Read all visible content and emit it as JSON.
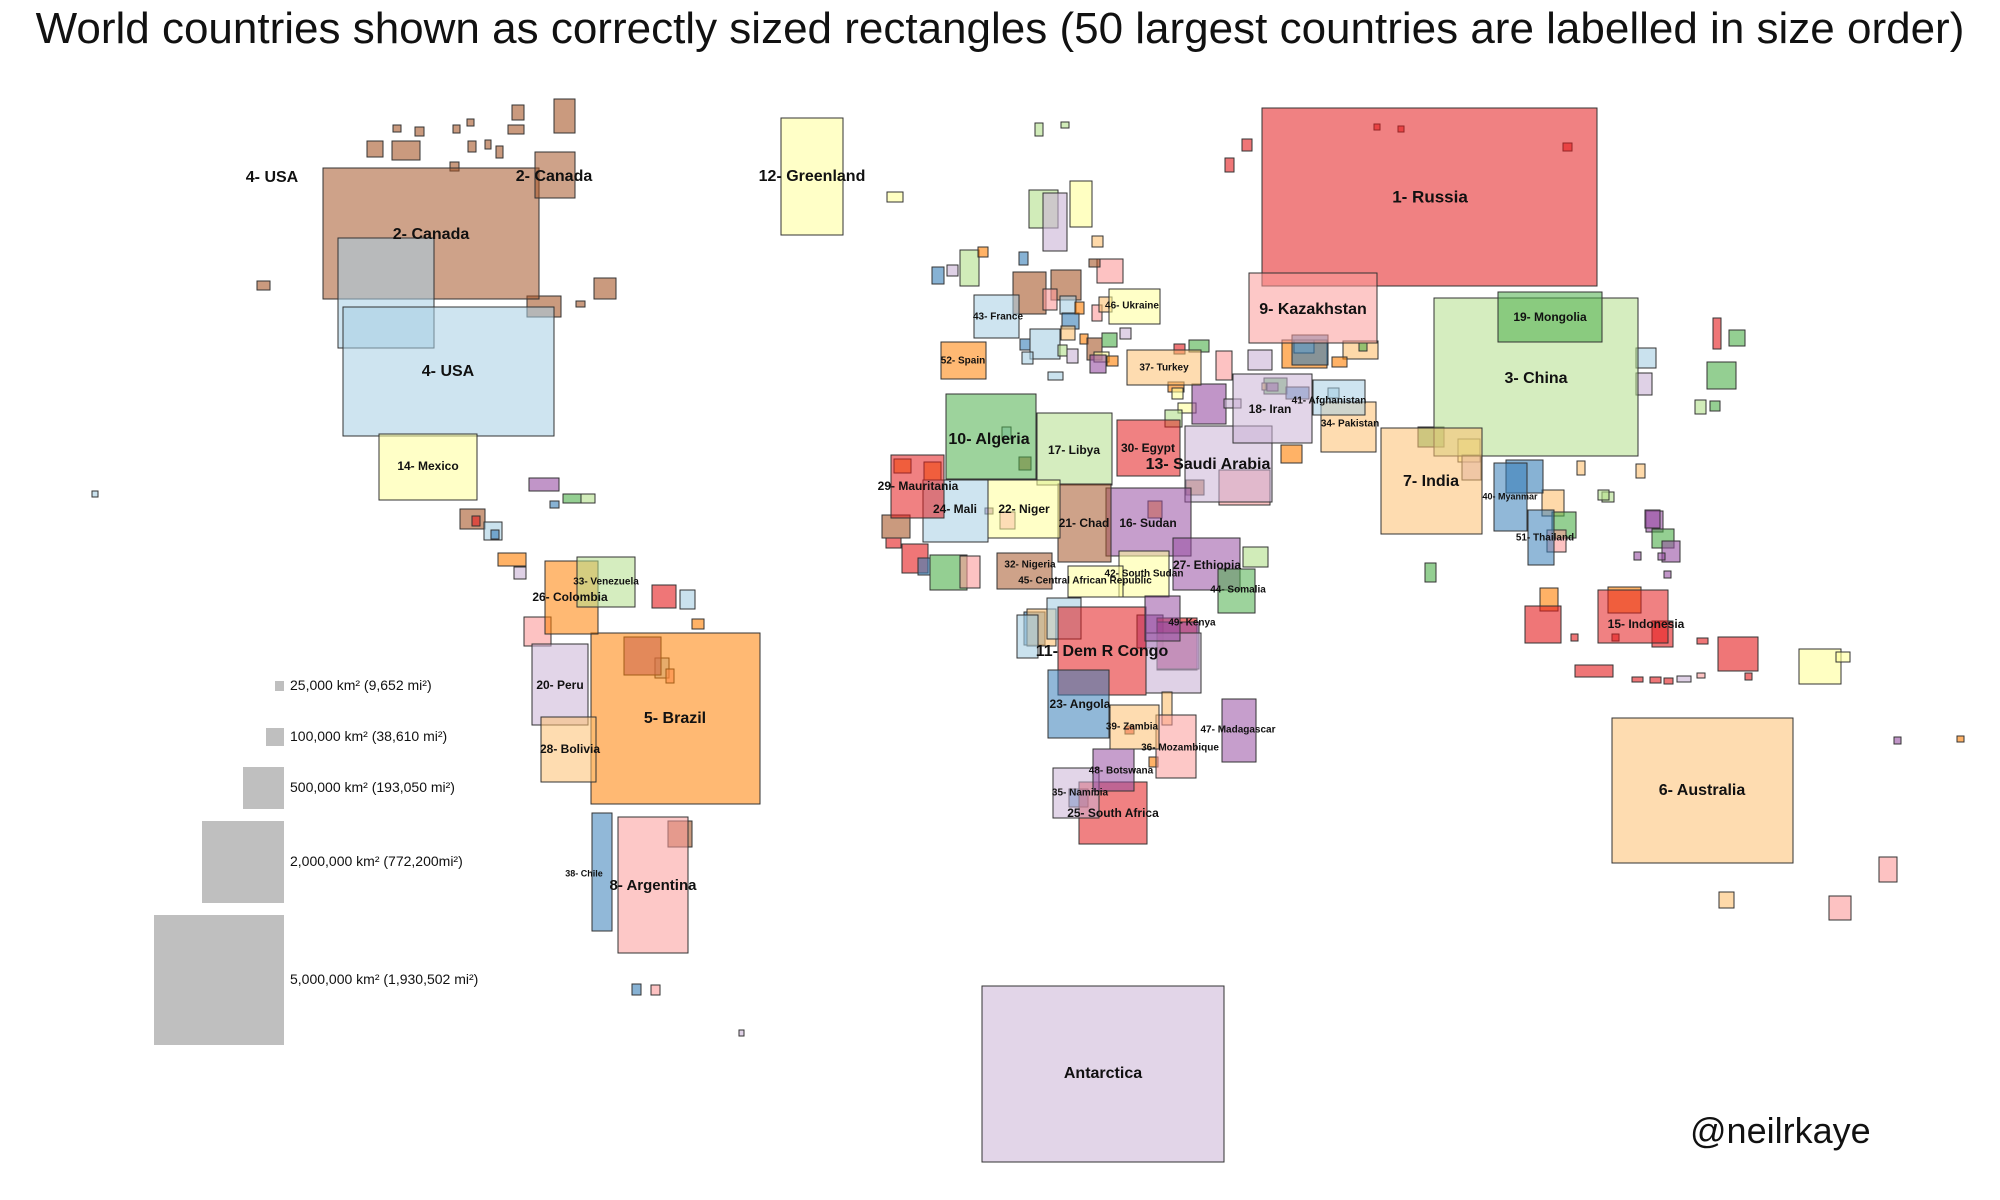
{
  "title": "World countries shown as correctly sized rectangles (50 largest countries are labelled in size order)",
  "credit": "@neilrkaye",
  "legend": [
    {
      "label": "25,000 km² (9,652 mi²)",
      "area_km2": 25000
    },
    {
      "label": "100,000 km² (38,610 mi²)",
      "area_km2": 100000
    },
    {
      "label": "500,000 km² (193,050 mi²)",
      "area_km2": 500000
    },
    {
      "label": "2,000,000 km² (772,200mi²)",
      "area_km2": 2000000
    },
    {
      "label": "5,000,000 km² (1,930,502 mi²)",
      "area_km2": 5000000
    }
  ],
  "palette": [
    "#e41a1c",
    "#377eb8",
    "#4daf4a",
    "#984ea3",
    "#ff7f00",
    "#ffff99",
    "#a65628",
    "#f781bf",
    "#b2df8a",
    "#a6cee3",
    "#fdbf6f",
    "#cab2d6",
    "#fb9a99"
  ],
  "countries": [
    {
      "label": "1- Russia",
      "color": "#e41a1c"
    },
    {
      "label": "2- Canada",
      "color": "#a65628"
    },
    {
      "label": "2- Canada",
      "color": "#a65628"
    },
    {
      "label": "3- China",
      "color": "#b2df8a"
    },
    {
      "label": "4- USA",
      "color": "#a6cee3"
    },
    {
      "label": "4- USA",
      "color": "#a6cee3"
    },
    {
      "label": "5- Brazil",
      "color": "#ff7f00"
    },
    {
      "label": "6- Australia",
      "color": "#fdbf6f"
    },
    {
      "label": "7- India",
      "color": "#fdbf6f"
    },
    {
      "label": "8- Argentina",
      "color": "#fb9a99"
    },
    {
      "label": "9- Kazakhstan",
      "color": "#fb9a99"
    },
    {
      "label": "10- Algeria",
      "color": "#4daf4a"
    },
    {
      "label": "11- Dem R Congo",
      "color": "#e41a1c"
    },
    {
      "label": "12- Greenland",
      "color": "#ffff99"
    },
    {
      "label": "13- Saudi Arabia",
      "color": "#cab2d6"
    },
    {
      "label": "14- Mexico",
      "color": "#ffff99"
    },
    {
      "label": "15- Indonesia",
      "color": "#e41a1c"
    },
    {
      "label": "16- Sudan",
      "color": "#984ea3"
    },
    {
      "label": "17- Libya",
      "color": "#b2df8a"
    },
    {
      "label": "18- Iran",
      "color": "#cab2d6"
    },
    {
      "label": "19- Mongolia",
      "color": "#4daf4a"
    },
    {
      "label": "20- Peru",
      "color": "#cab2d6"
    },
    {
      "label": "21- Chad",
      "color": "#a65628"
    },
    {
      "label": "22- Niger",
      "color": "#ffff99"
    },
    {
      "label": "23- Angola",
      "color": "#377eb8"
    },
    {
      "label": "24- Mali",
      "color": "#a6cee3"
    },
    {
      "label": "25- South Africa",
      "color": "#e41a1c"
    },
    {
      "label": "26- Colombia",
      "color": "#ff7f00"
    },
    {
      "label": "27- Ethiopia",
      "color": "#984ea3"
    },
    {
      "label": "28- Bolivia",
      "color": "#fdbf6f"
    },
    {
      "label": "29- Mauritania",
      "color": "#e41a1c"
    },
    {
      "label": "30- Egypt",
      "color": "#e41a1c"
    },
    {
      "label": "32- Nigeria",
      "color": "#a65628"
    },
    {
      "label": "33- Venezuela",
      "color": "#b2df8a"
    },
    {
      "label": "34- Pakistan",
      "color": "#fdbf6f"
    },
    {
      "label": "35- Namibia",
      "color": "#cab2d6"
    },
    {
      "label": "36- Mozambique",
      "color": "#fb9a99"
    },
    {
      "label": "37- Turkey",
      "color": "#fdbf6f"
    },
    {
      "label": "38- Chile",
      "color": "#377eb8"
    },
    {
      "label": "39- Zambia",
      "color": "#fdbf6f"
    },
    {
      "label": "40- Myanmar",
      "color": "#377eb8"
    },
    {
      "label": "41- Afghanistan",
      "color": "#a6cee3"
    },
    {
      "label": "42- South Sudan",
      "color": "#ffff99"
    },
    {
      "label": "43- France",
      "color": "#a6cee3"
    },
    {
      "label": "44- Somalia",
      "color": "#4daf4a"
    },
    {
      "label": "45- Central African Republic",
      "color": "#ffff99"
    },
    {
      "label": "46- Ukraine",
      "color": "#ffff99"
    },
    {
      "label": "47- Madagascar",
      "color": "#984ea3"
    },
    {
      "label": "48- Botswana",
      "color": "#984ea3"
    },
    {
      "label": "49- Kenya",
      "color": "#984ea3"
    },
    {
      "label": "51- Thailand",
      "color": "#377eb8"
    },
    {
      "label": "52- Spain",
      "color": "#ff7f00"
    },
    {
      "label": "Antarctica",
      "color": "#cab2d6"
    }
  ]
}
